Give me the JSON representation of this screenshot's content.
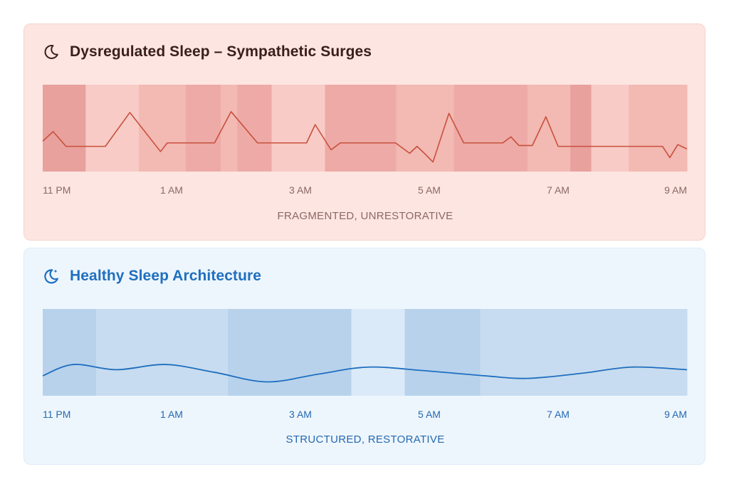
{
  "chart_data": [
    {
      "type": "line",
      "title": "Dysregulated Sleep – Sympathetic Surges",
      "icon": "moon-icon",
      "caption": "FRAGMENTED, UNRESTORATIVE",
      "x_ticks": [
        "11 PM",
        "1 AM",
        "3 AM",
        "5 AM",
        "7 AM",
        "9 AM"
      ],
      "xlim": [
        0,
        10.5
      ],
      "ylim": [
        0,
        1
      ],
      "line_color": "#c8503d",
      "band_colors": [
        "#f8cbc6",
        "#f3b9b3",
        "#eeaaa6",
        "#e8a19d"
      ],
      "bands": [
        {
          "start": 0.0,
          "end": 0.7,
          "level": 3
        },
        {
          "start": 0.7,
          "end": 1.57,
          "level": 0
        },
        {
          "start": 1.57,
          "end": 2.33,
          "level": 1
        },
        {
          "start": 2.33,
          "end": 2.9,
          "level": 2
        },
        {
          "start": 2.9,
          "end": 3.17,
          "level": 1
        },
        {
          "start": 3.17,
          "end": 3.73,
          "level": 2
        },
        {
          "start": 3.73,
          "end": 4.6,
          "level": 0
        },
        {
          "start": 4.6,
          "end": 5.76,
          "level": 2
        },
        {
          "start": 5.76,
          "end": 6.7,
          "level": 1
        },
        {
          "start": 6.7,
          "end": 7.9,
          "level": 2
        },
        {
          "start": 7.9,
          "end": 8.6,
          "level": 1
        },
        {
          "start": 8.6,
          "end": 8.94,
          "level": 3
        },
        {
          "start": 8.94,
          "end": 9.55,
          "level": 0
        },
        {
          "start": 9.55,
          "end": 10.5,
          "level": 1
        }
      ],
      "points": [
        [
          0.0,
          0.35
        ],
        [
          0.17,
          0.46
        ],
        [
          0.38,
          0.29
        ],
        [
          1.02,
          0.29
        ],
        [
          1.42,
          0.68
        ],
        [
          1.92,
          0.23
        ],
        [
          2.03,
          0.33
        ],
        [
          2.8,
          0.33
        ],
        [
          3.07,
          0.69
        ],
        [
          3.5,
          0.33
        ],
        [
          4.3,
          0.33
        ],
        [
          4.44,
          0.54
        ],
        [
          4.7,
          0.25
        ],
        [
          4.85,
          0.33
        ],
        [
          5.75,
          0.33
        ],
        [
          5.98,
          0.21
        ],
        [
          6.1,
          0.29
        ],
        [
          6.22,
          0.21
        ],
        [
          6.36,
          0.11
        ],
        [
          6.62,
          0.67
        ],
        [
          6.86,
          0.33
        ],
        [
          7.5,
          0.33
        ],
        [
          7.63,
          0.4
        ],
        [
          7.76,
          0.3
        ],
        [
          7.98,
          0.3
        ],
        [
          8.2,
          0.63
        ],
        [
          8.4,
          0.29
        ],
        [
          10.1,
          0.29
        ],
        [
          10.22,
          0.16
        ],
        [
          10.35,
          0.31
        ],
        [
          10.5,
          0.26
        ]
      ]
    },
    {
      "type": "line",
      "title": "Healthy Sleep Architecture",
      "icon": "moon-stars-icon",
      "caption": "STRUCTURED, RESTORATIVE",
      "x_ticks": [
        "11 PM",
        "1 AM",
        "3 AM",
        "5 AM",
        "7 AM",
        "9 AM"
      ],
      "xlim": [
        0,
        10.5
      ],
      "ylim": [
        0,
        1
      ],
      "line_color": "#1f6fbf",
      "band_colors": [
        "#dbeaf8",
        "#c7dcf0",
        "#b8d2ec"
      ],
      "bands": [
        {
          "start": 0.0,
          "end": 0.87,
          "level": 2
        },
        {
          "start": 0.87,
          "end": 3.02,
          "level": 1
        },
        {
          "start": 3.02,
          "end": 5.03,
          "level": 2
        },
        {
          "start": 5.03,
          "end": 5.9,
          "level": 0
        },
        {
          "start": 5.9,
          "end": 7.13,
          "level": 2
        },
        {
          "start": 7.13,
          "end": 8.94,
          "level": 1
        },
        {
          "start": 8.94,
          "end": 10.5,
          "level": 1
        }
      ],
      "points": [
        [
          0.0,
          0.23
        ],
        [
          0.5,
          0.36
        ],
        [
          1.2,
          0.3
        ],
        [
          2.0,
          0.36
        ],
        [
          2.8,
          0.27
        ],
        [
          3.65,
          0.16
        ],
        [
          4.5,
          0.25
        ],
        [
          5.3,
          0.33
        ],
        [
          6.2,
          0.29
        ],
        [
          7.2,
          0.23
        ],
        [
          7.9,
          0.2
        ],
        [
          8.8,
          0.26
        ],
        [
          9.6,
          0.33
        ],
        [
          10.5,
          0.3
        ]
      ]
    }
  ]
}
